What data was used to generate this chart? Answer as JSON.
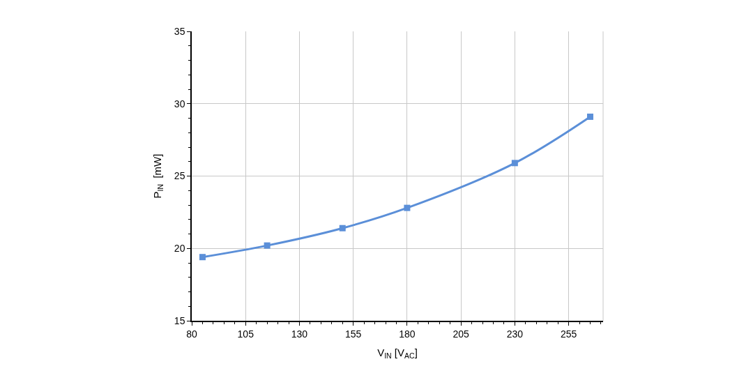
{
  "chart_data": {
    "type": "line",
    "xlabel": "V$_{IN}$ [V$_{AC}$]",
    "ylabel": "P$_{IN}$  [mW]",
    "x": [
      85,
      115,
      150,
      180,
      230,
      265
    ],
    "series": [
      {
        "color": "#5b8fd8",
        "values": [
          19.4,
          20.2,
          21.4,
          22.8,
          25.9,
          29.1
        ]
      }
    ],
    "xlim": [
      80,
      271
    ],
    "xticks": [
      80,
      105,
      130,
      155,
      180,
      205,
      230,
      255
    ],
    "ylim": [
      15,
      35
    ],
    "yticks": [
      15,
      20,
      25,
      30,
      35
    ],
    "grid": true,
    "marker": "square",
    "line_style": "solid"
  }
}
